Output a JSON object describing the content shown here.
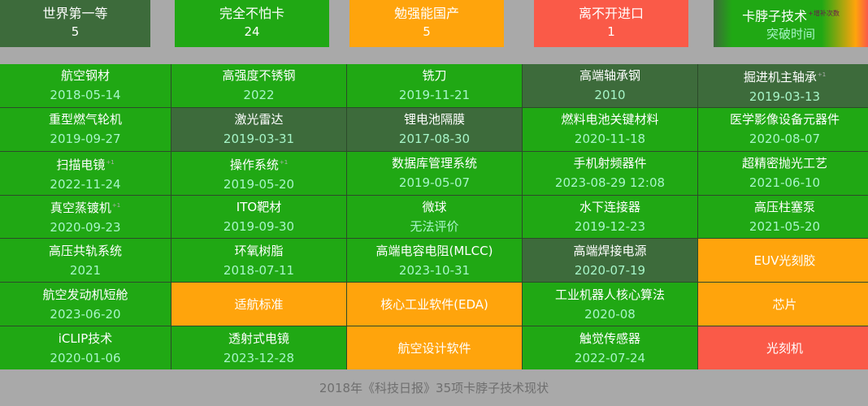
{
  "summary": [
    {
      "label": "世界第一等",
      "count": "5",
      "status": "d"
    },
    {
      "label": "完全不怕卡",
      "count": "24",
      "status": "g"
    },
    {
      "label": "勉强能国产",
      "count": "5",
      "status": "o"
    },
    {
      "label": "离不开进口",
      "count": "1",
      "status": "r"
    }
  ],
  "legend": {
    "title": "卡脖子技术",
    "superscript": "+增补次数",
    "subtitle": "突破时间"
  },
  "colors": {
    "green": "#20a814",
    "dark_green": "#3d6b3b",
    "orange": "#ffa40c",
    "red": "#fa5a48"
  },
  "cells": [
    {
      "name": "航空钢材",
      "date": "2018-05-14",
      "status": "g"
    },
    {
      "name": "高强度不锈钢",
      "date": "2022",
      "status": "g"
    },
    {
      "name": "铣刀",
      "date": "2019-11-21",
      "status": "g"
    },
    {
      "name": "高端轴承钢",
      "date": "2010",
      "status": "d"
    },
    {
      "name": "掘进机主轴承",
      "sup": "+1",
      "date": "2019-03-13",
      "status": "d"
    },
    {
      "name": "重型燃气轮机",
      "date": "2019-09-27",
      "status": "g"
    },
    {
      "name": "激光雷达",
      "date": "2019-03-31",
      "status": "d"
    },
    {
      "name": "锂电池隔膜",
      "date": "2017-08-30",
      "status": "d"
    },
    {
      "name": "燃料电池关键材料",
      "date": "2020-11-18",
      "status": "g"
    },
    {
      "name": "医学影像设备元器件",
      "date": "2020-08-07",
      "status": "g"
    },
    {
      "name": "扫描电镜",
      "sup": "+1",
      "date": "2022-11-24",
      "status": "g"
    },
    {
      "name": "操作系统",
      "sup": "+1",
      "date": "2019-05-20",
      "status": "g"
    },
    {
      "name": "数据库管理系统",
      "date": "2019-05-07",
      "status": "g"
    },
    {
      "name": "手机射频器件",
      "date": "2023-08-29 12:08",
      "status": "g"
    },
    {
      "name": "超精密抛光工艺",
      "date": "2021-06-10",
      "status": "g"
    },
    {
      "name": "真空蒸镀机",
      "sup": "+1",
      "date": "2020-09-23",
      "status": "g"
    },
    {
      "name": "ITO靶材",
      "date": "2019-09-30",
      "status": "g"
    },
    {
      "name": "微球",
      "date": "无法评价",
      "status": "g"
    },
    {
      "name": "水下连接器",
      "date": "2019-12-23",
      "status": "g"
    },
    {
      "name": "高压柱塞泵",
      "date": "2021-05-20",
      "status": "g"
    },
    {
      "name": "高压共轨系统",
      "date": "2021",
      "status": "g"
    },
    {
      "name": "环氧树脂",
      "date": "2018-07-11",
      "status": "g"
    },
    {
      "name": "高端电容电阻(MLCC)",
      "date": "2023-10-31",
      "status": "g"
    },
    {
      "name": "高端焊接电源",
      "date": "2020-07-19",
      "status": "d"
    },
    {
      "name": "EUV光刻胶",
      "status": "o"
    },
    {
      "name": "航空发动机短舱",
      "date": "2023-06-20",
      "status": "g"
    },
    {
      "name": "适航标准",
      "status": "o"
    },
    {
      "name": "核心工业软件(EDA)",
      "status": "o"
    },
    {
      "name": "工业机器人核心算法",
      "date": "2020-08",
      "status": "g"
    },
    {
      "name": "芯片",
      "status": "o"
    },
    {
      "name": "iCLIP技术",
      "date": "2020-01-06",
      "status": "g"
    },
    {
      "name": "透射式电镜",
      "date": "2023-12-28",
      "status": "g"
    },
    {
      "name": "航空设计软件",
      "status": "o"
    },
    {
      "name": "触觉传感器",
      "date": "2022-07-24",
      "status": "g"
    },
    {
      "name": "光刻机",
      "status": "r"
    }
  ],
  "footer": "2018年《科技日报》35项卡脖子技术现状"
}
